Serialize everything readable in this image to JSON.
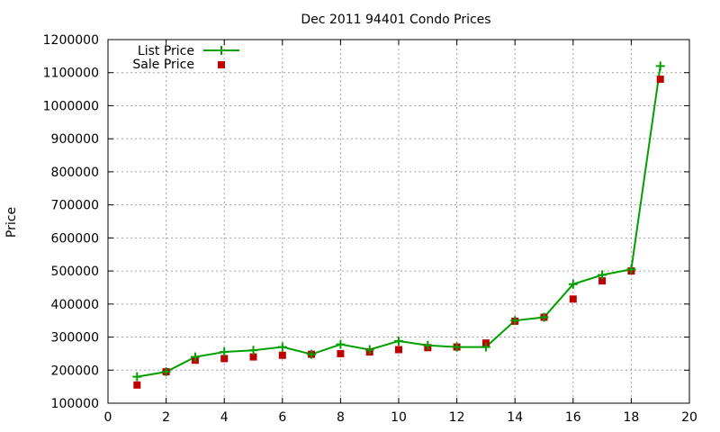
{
  "chart_data": {
    "type": "line",
    "title": "Dec 2011 94401 Condo Prices",
    "xlabel": "",
    "ylabel": "Price",
    "xlim": [
      0,
      20
    ],
    "ylim": [
      100000,
      1200000
    ],
    "x_ticks": [
      0,
      2,
      4,
      6,
      8,
      10,
      12,
      14,
      16,
      18,
      20
    ],
    "y_ticks": [
      100000,
      200000,
      300000,
      400000,
      500000,
      600000,
      700000,
      800000,
      900000,
      1000000,
      1100000,
      1200000
    ],
    "grid": true,
    "legend_position": "top-left",
    "x": [
      1,
      2,
      3,
      4,
      5,
      6,
      7,
      8,
      9,
      10,
      11,
      12,
      13,
      14,
      15,
      16,
      17,
      18,
      19
    ],
    "series": [
      {
        "name": "List Price",
        "style": "line-with-plus-markers",
        "color": "#00a000",
        "values": [
          180000,
          195000,
          240000,
          255000,
          260000,
          270000,
          248000,
          278000,
          262000,
          288000,
          275000,
          270000,
          270000,
          350000,
          360000,
          460000,
          488000,
          505000,
          1120000
        ]
      },
      {
        "name": "Sale Price",
        "style": "square-markers",
        "color": "#c00000",
        "values": [
          155000,
          195000,
          230000,
          235000,
          240000,
          245000,
          248000,
          250000,
          255000,
          262000,
          268000,
          270000,
          282000,
          348000,
          360000,
          415000,
          470000,
          500000,
          1080000
        ]
      }
    ]
  }
}
